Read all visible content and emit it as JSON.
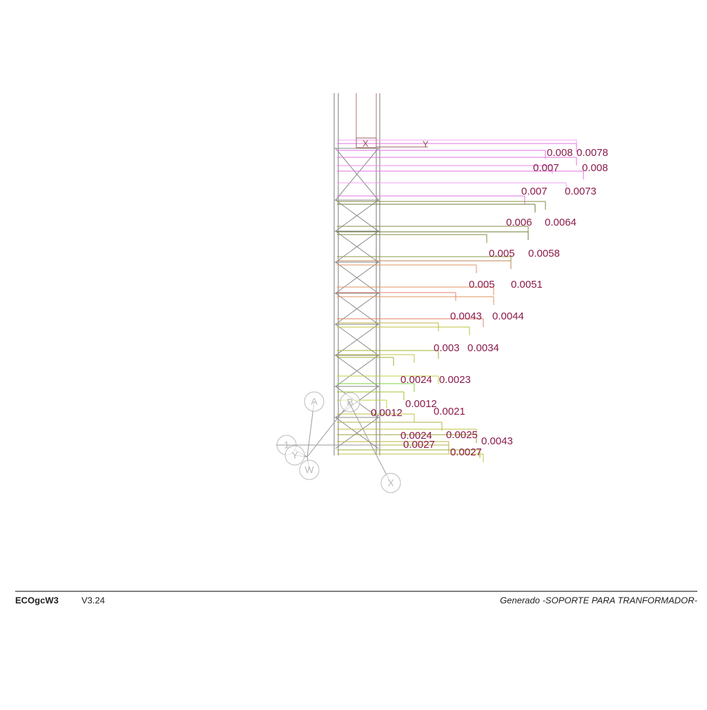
{
  "drawing": {
    "axis_labels": [
      "X",
      "Y"
    ],
    "displacement_labels": [
      "0.0078",
      "0.008",
      "0.008",
      "0.007",
      "0.0073",
      "0.007",
      "0.0064",
      "0.006",
      "0.0058",
      "0.005",
      "0.0051",
      "0.005",
      "0.0044",
      "0.0043",
      "0.0034",
      "0.003",
      "0.0023",
      "0.0024",
      "0.0012",
      "0.0021",
      "0.0012",
      "0.0024",
      "0.0025",
      "0.0043",
      "0.0027",
      "0.0027"
    ],
    "nodes": [
      "A",
      "B",
      "1",
      "Y",
      "W",
      "X"
    ]
  },
  "footer": {
    "program": "ECOgcW3",
    "version": "V3.24",
    "description": "Generado -SOPORTE PARA TRANFORMADOR-"
  }
}
